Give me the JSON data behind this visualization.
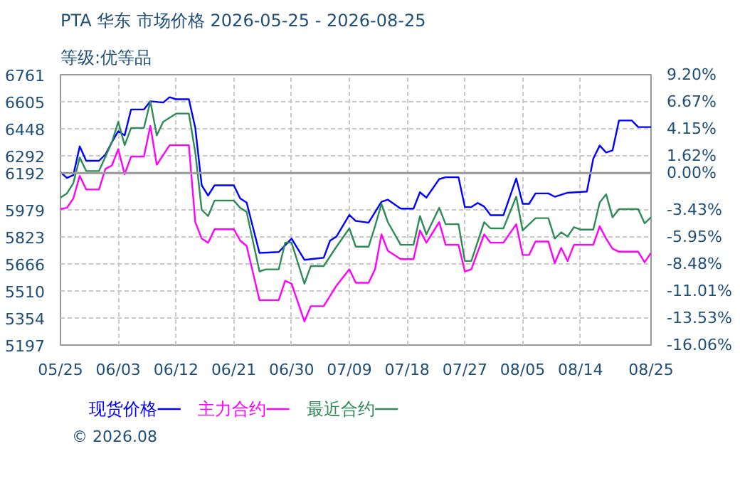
{
  "chart_data": {
    "type": "line",
    "title": "PTA 华东 市场价格 2026-05-25 - 2026-08-25",
    "subtitle": "等级:优等品",
    "annotations": [
      "© 2026.08"
    ],
    "xlim": [
      "2026-05-25",
      "2026-08-25"
    ],
    "xticks": [
      {
        "value": "2026-05-25",
        "label": "05/25"
      },
      {
        "value": "2026-06-03",
        "label": "06/03"
      },
      {
        "value": "2026-06-12",
        "label": "06/12"
      },
      {
        "value": "2026-06-21",
        "label": "06/21"
      },
      {
        "value": "2026-06-30",
        "label": "06/30"
      },
      {
        "value": "2026-07-09",
        "label": "07/09"
      },
      {
        "value": "2026-07-18",
        "label": "07/18"
      },
      {
        "value": "2026-07-27",
        "label": "07/27"
      },
      {
        "value": "2026-08-05",
        "label": "08/05"
      },
      {
        "value": "2026-08-14",
        "label": "08/14"
      },
      {
        "value": "2026-08-25",
        "label": "08/25"
      }
    ],
    "ylim": [
      5197,
      6761
    ],
    "yticks": [
      5197,
      5354,
      5510,
      5666,
      5823,
      5979,
      6192,
      6292,
      6448,
      6605,
      6761
    ],
    "y2lim": [
      -16.06,
      9.2
    ],
    "y2ticks": [
      {
        "value": 9.2,
        "label": "9.20%"
      },
      {
        "value": 6.67,
        "label": "6.67%"
      },
      {
        "value": 4.15,
        "label": "4.15%"
      },
      {
        "value": 1.62,
        "label": "1.62%"
      },
      {
        "value": 0,
        "label": "0.00%"
      },
      {
        "value": -3.43,
        "label": "-3.43%"
      },
      {
        "value": -5.95,
        "label": "-5.95%"
      },
      {
        "value": -8.48,
        "label": "-8.48%"
      },
      {
        "value": -11.01,
        "label": "-11.01%"
      },
      {
        "value": -13.53,
        "label": "-13.53%"
      },
      {
        "value": -16.06,
        "label": "-16.06%"
      }
    ],
    "ref_lines": [
      {
        "axis": "y",
        "value": 6192,
        "color": "#999999",
        "line_style": "solid"
      }
    ],
    "grid": true,
    "legend": "bottom",
    "marker": "none",
    "line_style": "solid",
    "series": [
      {
        "name": "现货价格",
        "color": "#0000ff",
        "x": [
          "2026-05-25",
          "2026-05-26",
          "2026-05-27",
          "2026-05-28",
          "2026-05-29",
          "2026-05-31",
          "2026-06-01",
          "2026-06-02",
          "2026-06-03",
          "2026-06-04",
          "2026-06-05",
          "2026-06-07",
          "2026-06-08",
          "2026-06-10",
          "2026-06-11",
          "2026-06-12",
          "2026-06-14",
          "2026-06-15",
          "2026-06-16",
          "2026-06-17",
          "2026-06-18",
          "2026-06-21",
          "2026-06-22",
          "2026-06-23",
          "2026-06-25",
          "2026-06-28",
          "2026-06-30",
          "2026-07-02",
          "2026-07-05",
          "2026-07-06",
          "2026-07-07",
          "2026-07-09",
          "2026-07-10",
          "2026-07-12",
          "2026-07-14",
          "2026-07-15",
          "2026-07-17",
          "2026-07-19",
          "2026-07-20",
          "2026-07-21",
          "2026-07-23",
          "2026-07-24",
          "2026-07-26",
          "2026-07-27",
          "2026-07-28",
          "2026-07-29",
          "2026-07-30",
          "2026-07-31",
          "2026-08-02",
          "2026-08-04",
          "2026-08-05",
          "2026-08-06",
          "2026-08-07",
          "2026-08-09",
          "2026-08-10",
          "2026-08-12",
          "2026-08-15",
          "2026-08-16",
          "2026-08-17",
          "2026-08-18",
          "2026-08-19",
          "2026-08-20",
          "2026-08-22",
          "2026-08-23",
          "2026-08-25"
        ],
        "values": [
          6197,
          6164,
          6180,
          6346,
          6263,
          6263,
          6299,
          6370,
          6434,
          6410,
          6560,
          6560,
          6607,
          6600,
          6631,
          6619,
          6619,
          6453,
          6121,
          6062,
          6121,
          6121,
          6045,
          6021,
          5730,
          5735,
          5813,
          5690,
          5702,
          5801,
          5825,
          5950,
          5915,
          5905,
          6026,
          6038,
          5986,
          5986,
          6081,
          6050,
          6157,
          6168,
          6168,
          5995,
          5995,
          6019,
          5998,
          5948,
          5948,
          6161,
          6014,
          6014,
          6074,
          6074,
          6055,
          6078,
          6085,
          6275,
          6351,
          6311,
          6323,
          6496,
          6496,
          6458,
          6458
        ]
      },
      {
        "name": "主力合约",
        "color": "#ff00ff",
        "x": [
          "2026-05-25",
          "2026-05-26",
          "2026-05-27",
          "2026-05-28",
          "2026-05-29",
          "2026-05-31",
          "2026-06-01",
          "2026-06-02",
          "2026-06-03",
          "2026-06-04",
          "2026-06-05",
          "2026-06-07",
          "2026-06-08",
          "2026-06-09",
          "2026-06-11",
          "2026-06-14",
          "2026-06-15",
          "2026-06-16",
          "2026-06-17",
          "2026-06-18",
          "2026-06-21",
          "2026-06-22",
          "2026-06-23",
          "2026-06-25",
          "2026-06-28",
          "2026-06-29",
          "2026-06-30",
          "2026-07-02",
          "2026-07-03",
          "2026-07-05",
          "2026-07-07",
          "2026-07-09",
          "2026-07-10",
          "2026-07-12",
          "2026-07-13",
          "2026-07-14",
          "2026-07-15",
          "2026-07-17",
          "2026-07-19",
          "2026-07-20",
          "2026-07-21",
          "2026-07-23",
          "2026-07-24",
          "2026-07-26",
          "2026-07-27",
          "2026-07-28",
          "2026-07-30",
          "2026-07-31",
          "2026-08-02",
          "2026-08-04",
          "2026-08-05",
          "2026-08-06",
          "2026-08-07",
          "2026-08-09",
          "2026-08-10",
          "2026-08-11",
          "2026-08-12",
          "2026-08-13",
          "2026-08-14",
          "2026-08-16",
          "2026-08-17",
          "2026-08-18",
          "2026-08-19",
          "2026-08-20",
          "2026-08-23",
          "2026-08-24",
          "2026-08-25"
        ],
        "values": [
          5984,
          5991,
          6045,
          6176,
          6097,
          6097,
          6216,
          6235,
          6330,
          6185,
          6287,
          6287,
          6465,
          6240,
          6353,
          6353,
          5908,
          5813,
          5789,
          5867,
          5867,
          5801,
          5770,
          5457,
          5457,
          5569,
          5552,
          5334,
          5422,
          5422,
          5541,
          5635,
          5557,
          5557,
          5635,
          5837,
          5742,
          5694,
          5694,
          5860,
          5789,
          5908,
          5777,
          5777,
          5623,
          5635,
          5837,
          5789,
          5789,
          5896,
          5718,
          5718,
          5796,
          5796,
          5671,
          5759,
          5683,
          5777,
          5777,
          5777,
          5884,
          5813,
          5754,
          5737,
          5737,
          5676,
          5730
        ]
      },
      {
        "name": "最近合约",
        "color": "#2e8b57",
        "x": [
          "2026-05-25",
          "2026-05-26",
          "2026-05-27",
          "2026-05-28",
          "2026-05-29",
          "2026-05-31",
          "2026-06-01",
          "2026-06-02",
          "2026-06-03",
          "2026-06-04",
          "2026-06-05",
          "2026-06-07",
          "2026-06-08",
          "2026-06-09",
          "2026-06-10",
          "2026-06-12",
          "2026-06-14",
          "2026-06-15",
          "2026-06-16",
          "2026-06-17",
          "2026-06-18",
          "2026-06-21",
          "2026-06-22",
          "2026-06-23",
          "2026-06-25",
          "2026-06-26",
          "2026-06-28",
          "2026-06-29",
          "2026-06-30",
          "2026-07-02",
          "2026-07-03",
          "2026-07-05",
          "2026-07-07",
          "2026-07-09",
          "2026-07-10",
          "2026-07-12",
          "2026-07-13",
          "2026-07-14",
          "2026-07-15",
          "2026-07-17",
          "2026-07-19",
          "2026-07-20",
          "2026-07-21",
          "2026-07-23",
          "2026-07-24",
          "2026-07-26",
          "2026-07-27",
          "2026-07-28",
          "2026-07-30",
          "2026-07-31",
          "2026-08-02",
          "2026-08-04",
          "2026-08-05",
          "2026-08-07",
          "2026-08-09",
          "2026-08-10",
          "2026-08-11",
          "2026-08-12",
          "2026-08-13",
          "2026-08-14",
          "2026-08-16",
          "2026-08-17",
          "2026-08-18",
          "2026-08-19",
          "2026-08-20",
          "2026-08-23",
          "2026-08-24",
          "2026-08-25"
        ],
        "values": [
          6050,
          6074,
          6133,
          6282,
          6204,
          6204,
          6287,
          6370,
          6488,
          6353,
          6453,
          6453,
          6607,
          6410,
          6488,
          6536,
          6536,
          6311,
          5979,
          5943,
          6033,
          6033,
          5991,
          5967,
          5623,
          5635,
          5635,
          5789,
          5789,
          5552,
          5654,
          5654,
          5766,
          5872,
          5766,
          5766,
          5884,
          6014,
          5908,
          5777,
          5777,
          5943,
          5837,
          5991,
          5896,
          5896,
          5683,
          5683,
          5908,
          5872,
          5872,
          6055,
          5860,
          5931,
          5931,
          5813,
          5849,
          5825,
          5879,
          5865,
          5865,
          6021,
          6069,
          5936,
          5983,
          5983,
          5901,
          5936
        ]
      }
    ]
  }
}
